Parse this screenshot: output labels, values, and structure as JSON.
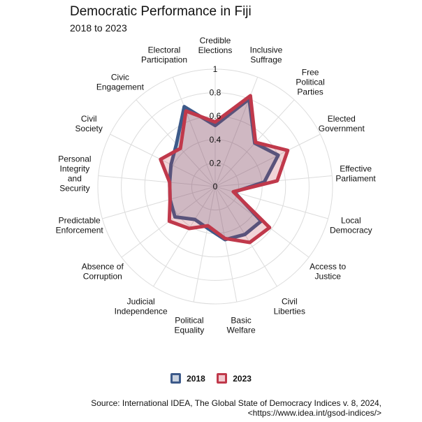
{
  "title": "Democratic Performance in Fiji",
  "subtitle": "2018 to 2023",
  "source": "Source: International IDEA, The Global State of Democracy Indices v. 8, 2024,\n<https://www.idea.int/gsod-indices/>",
  "chart_data": {
    "type": "radar",
    "title": "Democratic Performance in Fiji",
    "subtitle": "2018 to 2023",
    "rlim": [
      0,
      1
    ],
    "rticks": [
      "0",
      "0.2",
      "0.4",
      "0.6",
      "0.8",
      "1"
    ],
    "grid": true,
    "legend_position": "bottom",
    "categories": [
      "Credible\nElections",
      "Inclusive\nSuffrage",
      "Free\nPolitical\nParties",
      "Elected\nGovernment",
      "Effective\nParliament",
      "Local\nDemocracy",
      "Access to\nJustice",
      "Civil\nLiberties",
      "Basic\nWelfare",
      "Political\nEquality",
      "Judicial\nIndependence",
      "Absence of\nCorruption",
      "Predictable\nEnforcement",
      "Personal\nIntegrity\nand\nSecurity",
      "Civil\nSociety",
      "Civic\nEngagement",
      "Electoral\nParticipation"
    ],
    "series": [
      {
        "name": "2018",
        "color": "#3d5a8a",
        "values": [
          0.52,
          0.8,
          0.5,
          0.6,
          0.42,
          0.17,
          0.49,
          0.48,
          0.46,
          0.36,
          0.33,
          0.43,
          0.4,
          0.39,
          0.42,
          0.49,
          0.73
        ]
      },
      {
        "name": "2023",
        "color": "#c0394b",
        "values": [
          0.55,
          0.83,
          0.51,
          0.69,
          0.53,
          0.16,
          0.58,
          0.56,
          0.45,
          0.34,
          0.42,
          0.49,
          0.4,
          0.39,
          0.52,
          0.44,
          0.69
        ]
      }
    ]
  }
}
